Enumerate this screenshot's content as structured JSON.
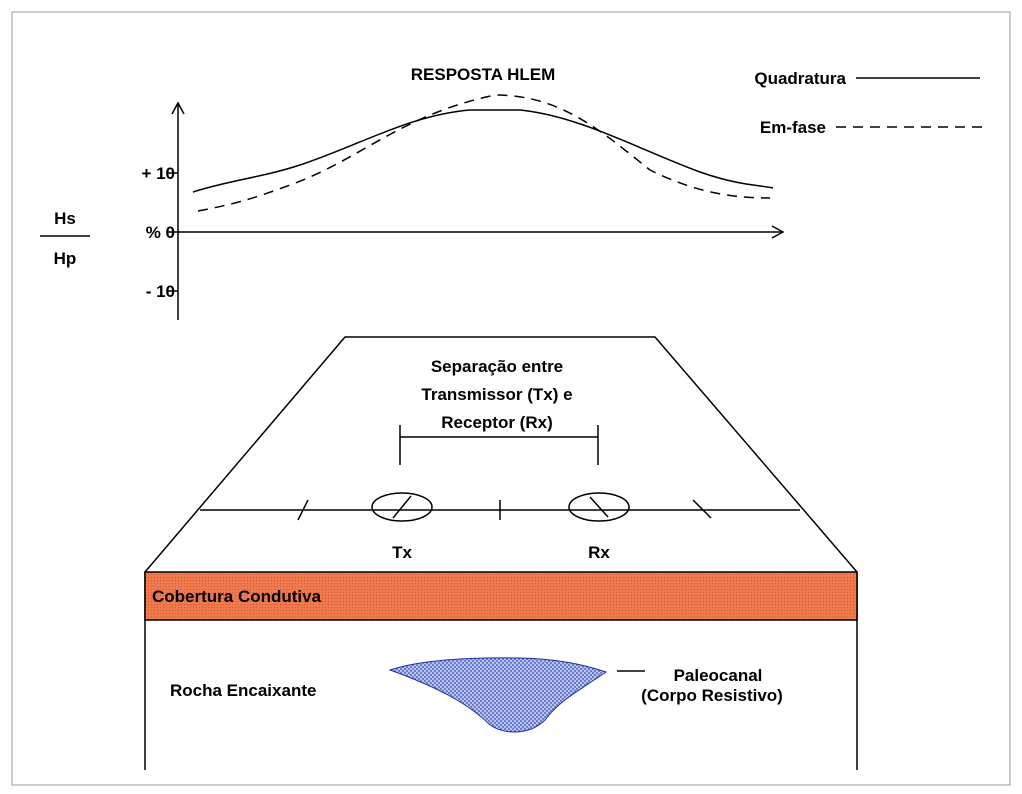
{
  "title": "RESPOSTA HLEM",
  "legend": [
    "Quadratura",
    "Em-fase"
  ],
  "axis": {
    "ticks": [
      "+ 10",
      "% 0",
      "- 10"
    ],
    "numerator": "Hs",
    "denominator": "Hp"
  },
  "separation": [
    "Separação entre",
    "Transmissor (Tx) e",
    "Receptor (Rx)"
  ],
  "coils": [
    "Tx",
    "Rx"
  ],
  "layer": "Cobertura Condutiva",
  "host": "Rocha Encaixante",
  "body": [
    "Paleocanal",
    "(Corpo Resistivo)"
  ]
}
